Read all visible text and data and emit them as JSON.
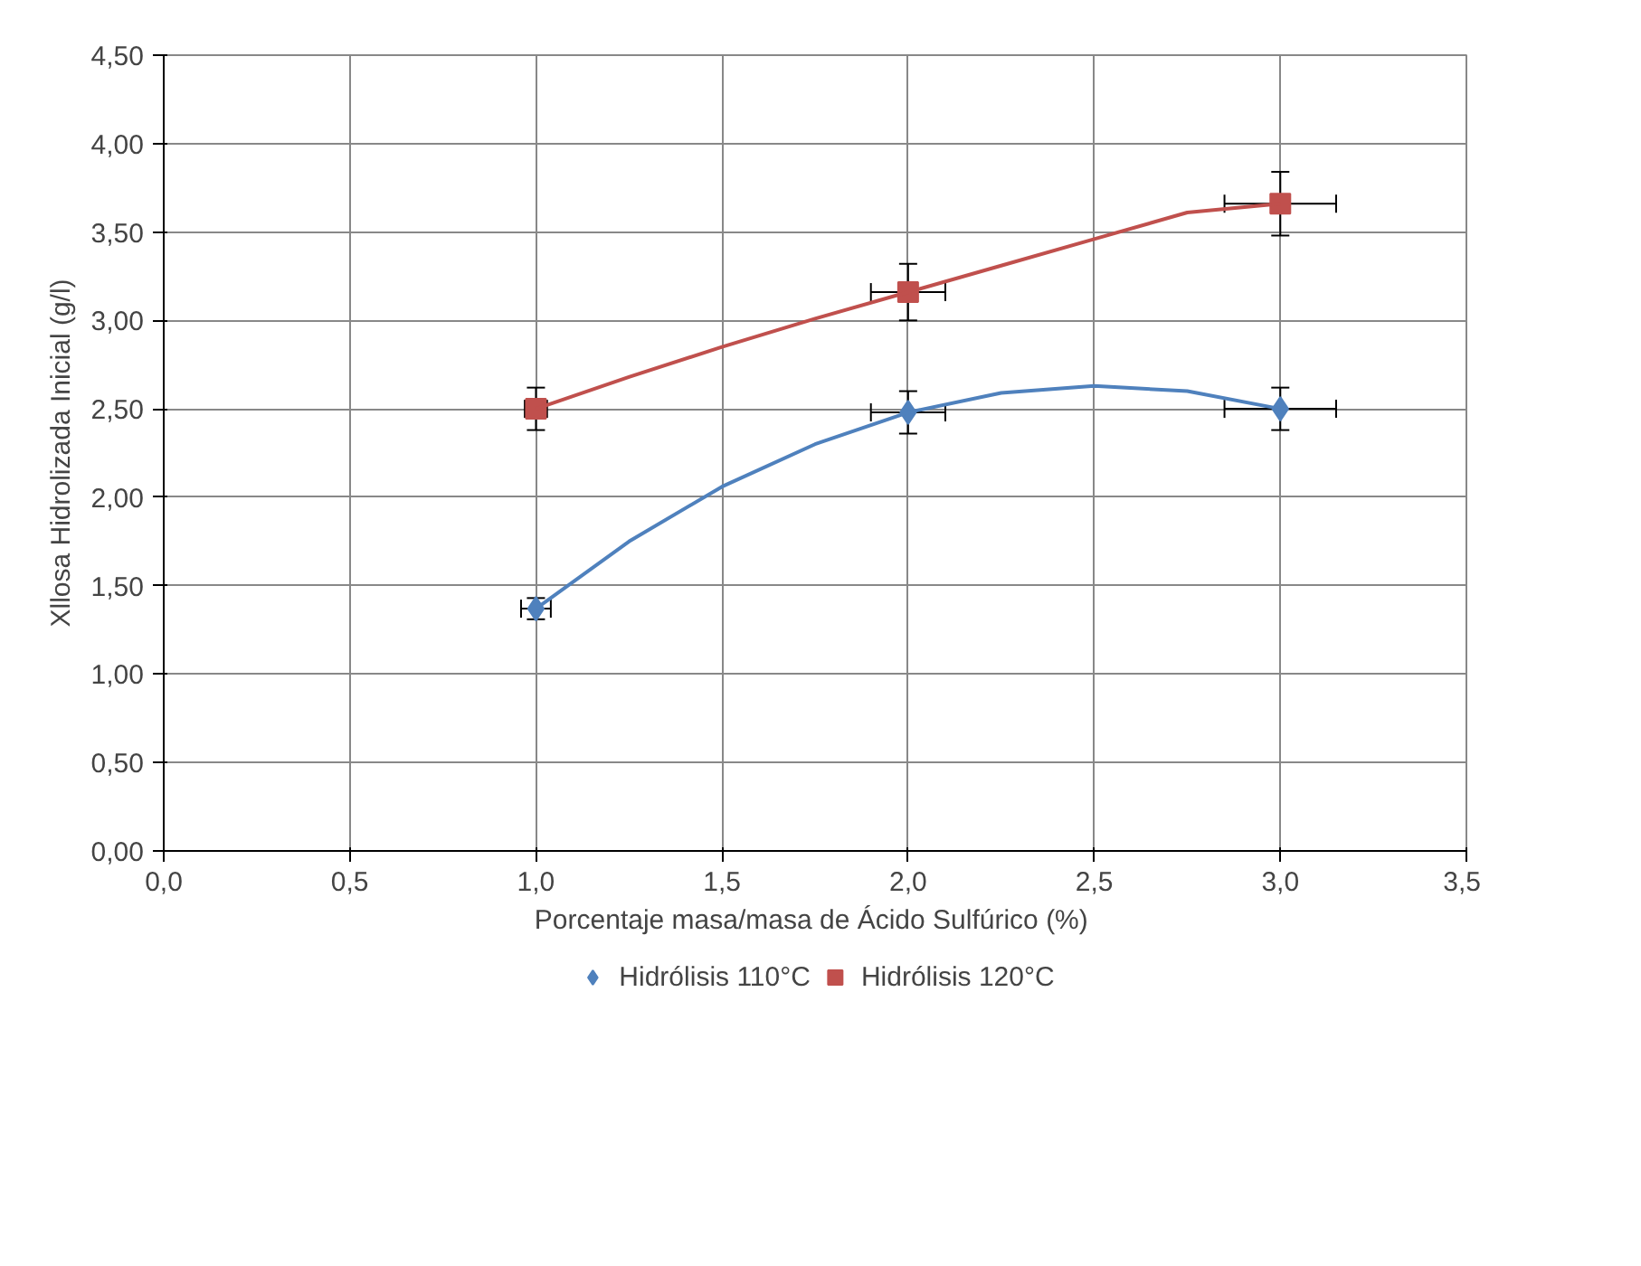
{
  "chart_data": {
    "type": "scatter",
    "xlabel": "Porcentaje  masa/masa de Ácido Sulfúrico (%)",
    "ylabel": "Xllosa Hidrolizada Inicial (g/l)",
    "xlim": [
      0,
      3.5
    ],
    "ylim": [
      0,
      4.5
    ],
    "xticks": [
      {
        "value": 0,
        "label": "0,0"
      },
      {
        "value": 0.5,
        "label": "0,5"
      },
      {
        "value": 1,
        "label": "1,0"
      },
      {
        "value": 1.5,
        "label": "1,5"
      },
      {
        "value": 2,
        "label": "2,0"
      },
      {
        "value": 2.5,
        "label": "2,5"
      },
      {
        "value": 3,
        "label": "3,0"
      },
      {
        "value": 3.5,
        "label": "3,5"
      }
    ],
    "yticks": [
      {
        "value": 0,
        "label": "0,00"
      },
      {
        "value": 0.5,
        "label": "0,50"
      },
      {
        "value": 1,
        "label": "1,00"
      },
      {
        "value": 1.5,
        "label": "1,50"
      },
      {
        "value": 2,
        "label": "2,00"
      },
      {
        "value": 2.5,
        "label": "2,50"
      },
      {
        "value": 3,
        "label": "3,00"
      },
      {
        "value": 3.5,
        "label": "3,50"
      },
      {
        "value": 4,
        "label": "4,00"
      },
      {
        "value": 4.5,
        "label": "4,50"
      }
    ],
    "grid": true,
    "legend": "bottom",
    "series": [
      {
        "name": "Hidrólisis 110°C",
        "marker": "diamond",
        "color": "#4f81bd",
        "x": [
          1,
          2,
          3
        ],
        "values": [
          1.37,
          2.48,
          2.5
        ],
        "errors": [
          0.06,
          0.12,
          0.12
        ],
        "xerrors": [
          0.04,
          0.1,
          0.15
        ]
      },
      {
        "name": "Hidrólisis 120°C",
        "marker": "square",
        "color": "#c0504d",
        "x": [
          1,
          2,
          3
        ],
        "values": [
          2.5,
          3.16,
          3.66
        ],
        "errors": [
          0.12,
          0.16,
          0.18
        ],
        "xerrors": [
          0.03,
          0.1,
          0.15
        ]
      },
      {
        "type": "line",
        "color": "#4f81bd",
        "x": [
          1,
          1.25,
          1.5,
          1.75,
          2,
          2.25,
          2.5,
          2.75,
          3
        ],
        "values": [
          1.37,
          1.75,
          2.06,
          2.3,
          2.48,
          2.59,
          2.63,
          2.6,
          2.5
        ]
      },
      {
        "type": "line",
        "color": "#c0504d",
        "x": [
          1,
          1.25,
          1.5,
          1.75,
          2,
          2.25,
          2.5,
          2.75,
          3
        ],
        "values": [
          2.5,
          2.68,
          2.85,
          3.01,
          3.16,
          3.31,
          3.46,
          3.61,
          3.66
        ]
      }
    ]
  }
}
